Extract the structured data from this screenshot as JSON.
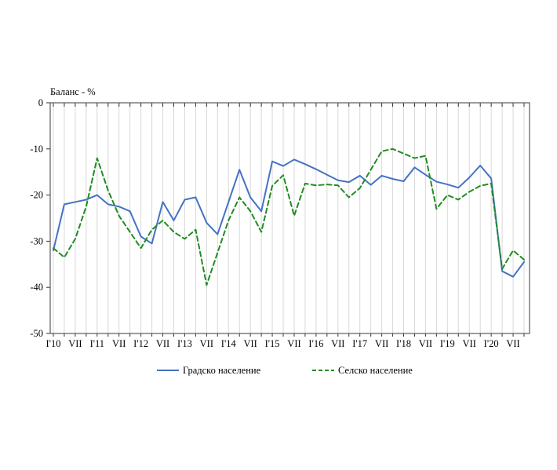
{
  "chart_data": {
    "type": "line",
    "title": "",
    "axis_title": "Баланс - %",
    "ylim": [
      -50,
      0
    ],
    "y_ticks": [
      0,
      -10,
      -20,
      -30,
      -40,
      -50
    ],
    "grid": "vertical-per-point",
    "legend_position": "bottom-center",
    "categories": [
      "I'10",
      "",
      "VII",
      "",
      "I'11",
      "",
      "VII",
      "",
      "I'12",
      "",
      "VII",
      "",
      "I'13",
      "",
      "VII",
      "",
      "I'14",
      "",
      "VII",
      "",
      "I'15",
      "",
      "VII",
      "",
      "I'16",
      "",
      "VII",
      "",
      "I'17",
      "",
      "VII",
      "",
      "I'18",
      "",
      "VII",
      "",
      "I'19",
      "",
      "VII",
      "",
      "I'20",
      "",
      "VII",
      ""
    ],
    "series": [
      {
        "name": "Градско население",
        "color": "#4472C4",
        "style": "solid",
        "values": [
          -32,
          -22,
          -21.5,
          -21,
          -20,
          -22,
          -22.5,
          -23.5,
          -29,
          -30.5,
          -21.5,
          -25.5,
          -21,
          -20.5,
          -26,
          -28.5,
          -21.5,
          -14.5,
          -20.5,
          -23.5,
          -12.7,
          -13.7,
          -12.3,
          -13.3,
          -14.4,
          -15.6,
          -16.8,
          -17.2,
          -15.8,
          -17.8,
          -15.8,
          -16.5,
          -17,
          -14,
          -15.6,
          -17.1,
          -17.7,
          -18.4,
          -16.2,
          -13.6,
          -16.4,
          -36.5,
          -37.7,
          -34.5
        ]
      },
      {
        "name": "Селско население",
        "color": "#228B22",
        "style": "dashed",
        "values": [
          -31.5,
          -33.5,
          -29.5,
          -22.5,
          -12,
          -19,
          -24.5,
          -28,
          -31.5,
          -27.5,
          -25.5,
          -28,
          -29.5,
          -27.5,
          -39.5,
          -32.5,
          -25.5,
          -20.5,
          -23.5,
          -28,
          -18,
          -15.7,
          -24.5,
          -17.5,
          -17.9,
          -17.7,
          -17.9,
          -20.5,
          -18.5,
          -14.5,
          -10.5,
          -10,
          -11,
          -12,
          -11.5,
          -23,
          -20,
          -21,
          -19.3,
          -18,
          -17.5,
          -36,
          -32,
          -34
        ]
      }
    ],
    "colors": {
      "grid": "#D9D9D9",
      "border": "#5A5A5A",
      "text": "#000000"
    }
  }
}
